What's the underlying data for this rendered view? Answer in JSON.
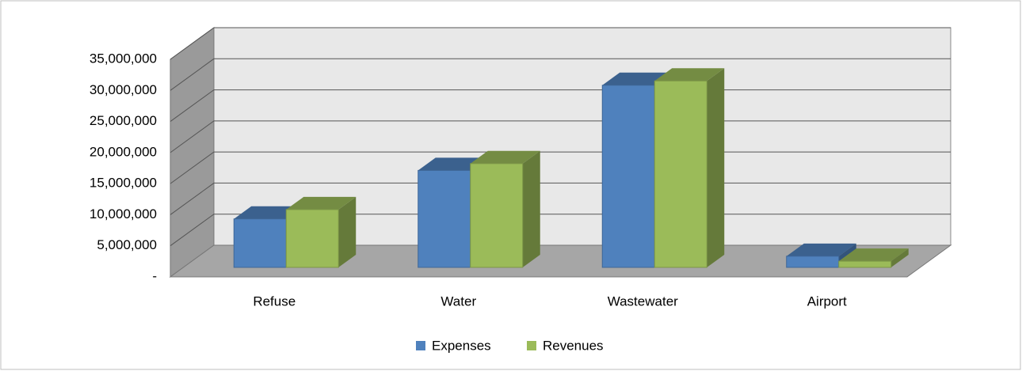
{
  "chart_data": {
    "type": "bar3d",
    "categories": [
      "Refuse",
      "Water",
      "Wastewater",
      "Airport"
    ],
    "series": [
      {
        "name": "Expenses",
        "color": "#4f81bd",
        "values": [
          7800000,
          15600000,
          29300000,
          1800000
        ]
      },
      {
        "name": "Revenues",
        "color": "#9bbb59",
        "values": [
          9300000,
          16700000,
          30000000,
          1000000
        ]
      }
    ],
    "ylim": [
      0,
      35000000
    ],
    "yticks": [
      {
        "value": 0,
        "label": "-"
      },
      {
        "value": 5000000,
        "label": "5,000,000"
      },
      {
        "value": 10000000,
        "label": "10,000,000"
      },
      {
        "value": 15000000,
        "label": "15,000,000"
      },
      {
        "value": 20000000,
        "label": "20,000,000"
      },
      {
        "value": 25000000,
        "label": "25,000,000"
      },
      {
        "value": 30000000,
        "label": "30,000,000"
      },
      {
        "value": 35000000,
        "label": "35,000,000"
      }
    ],
    "grid": true,
    "legend": "bottom"
  }
}
